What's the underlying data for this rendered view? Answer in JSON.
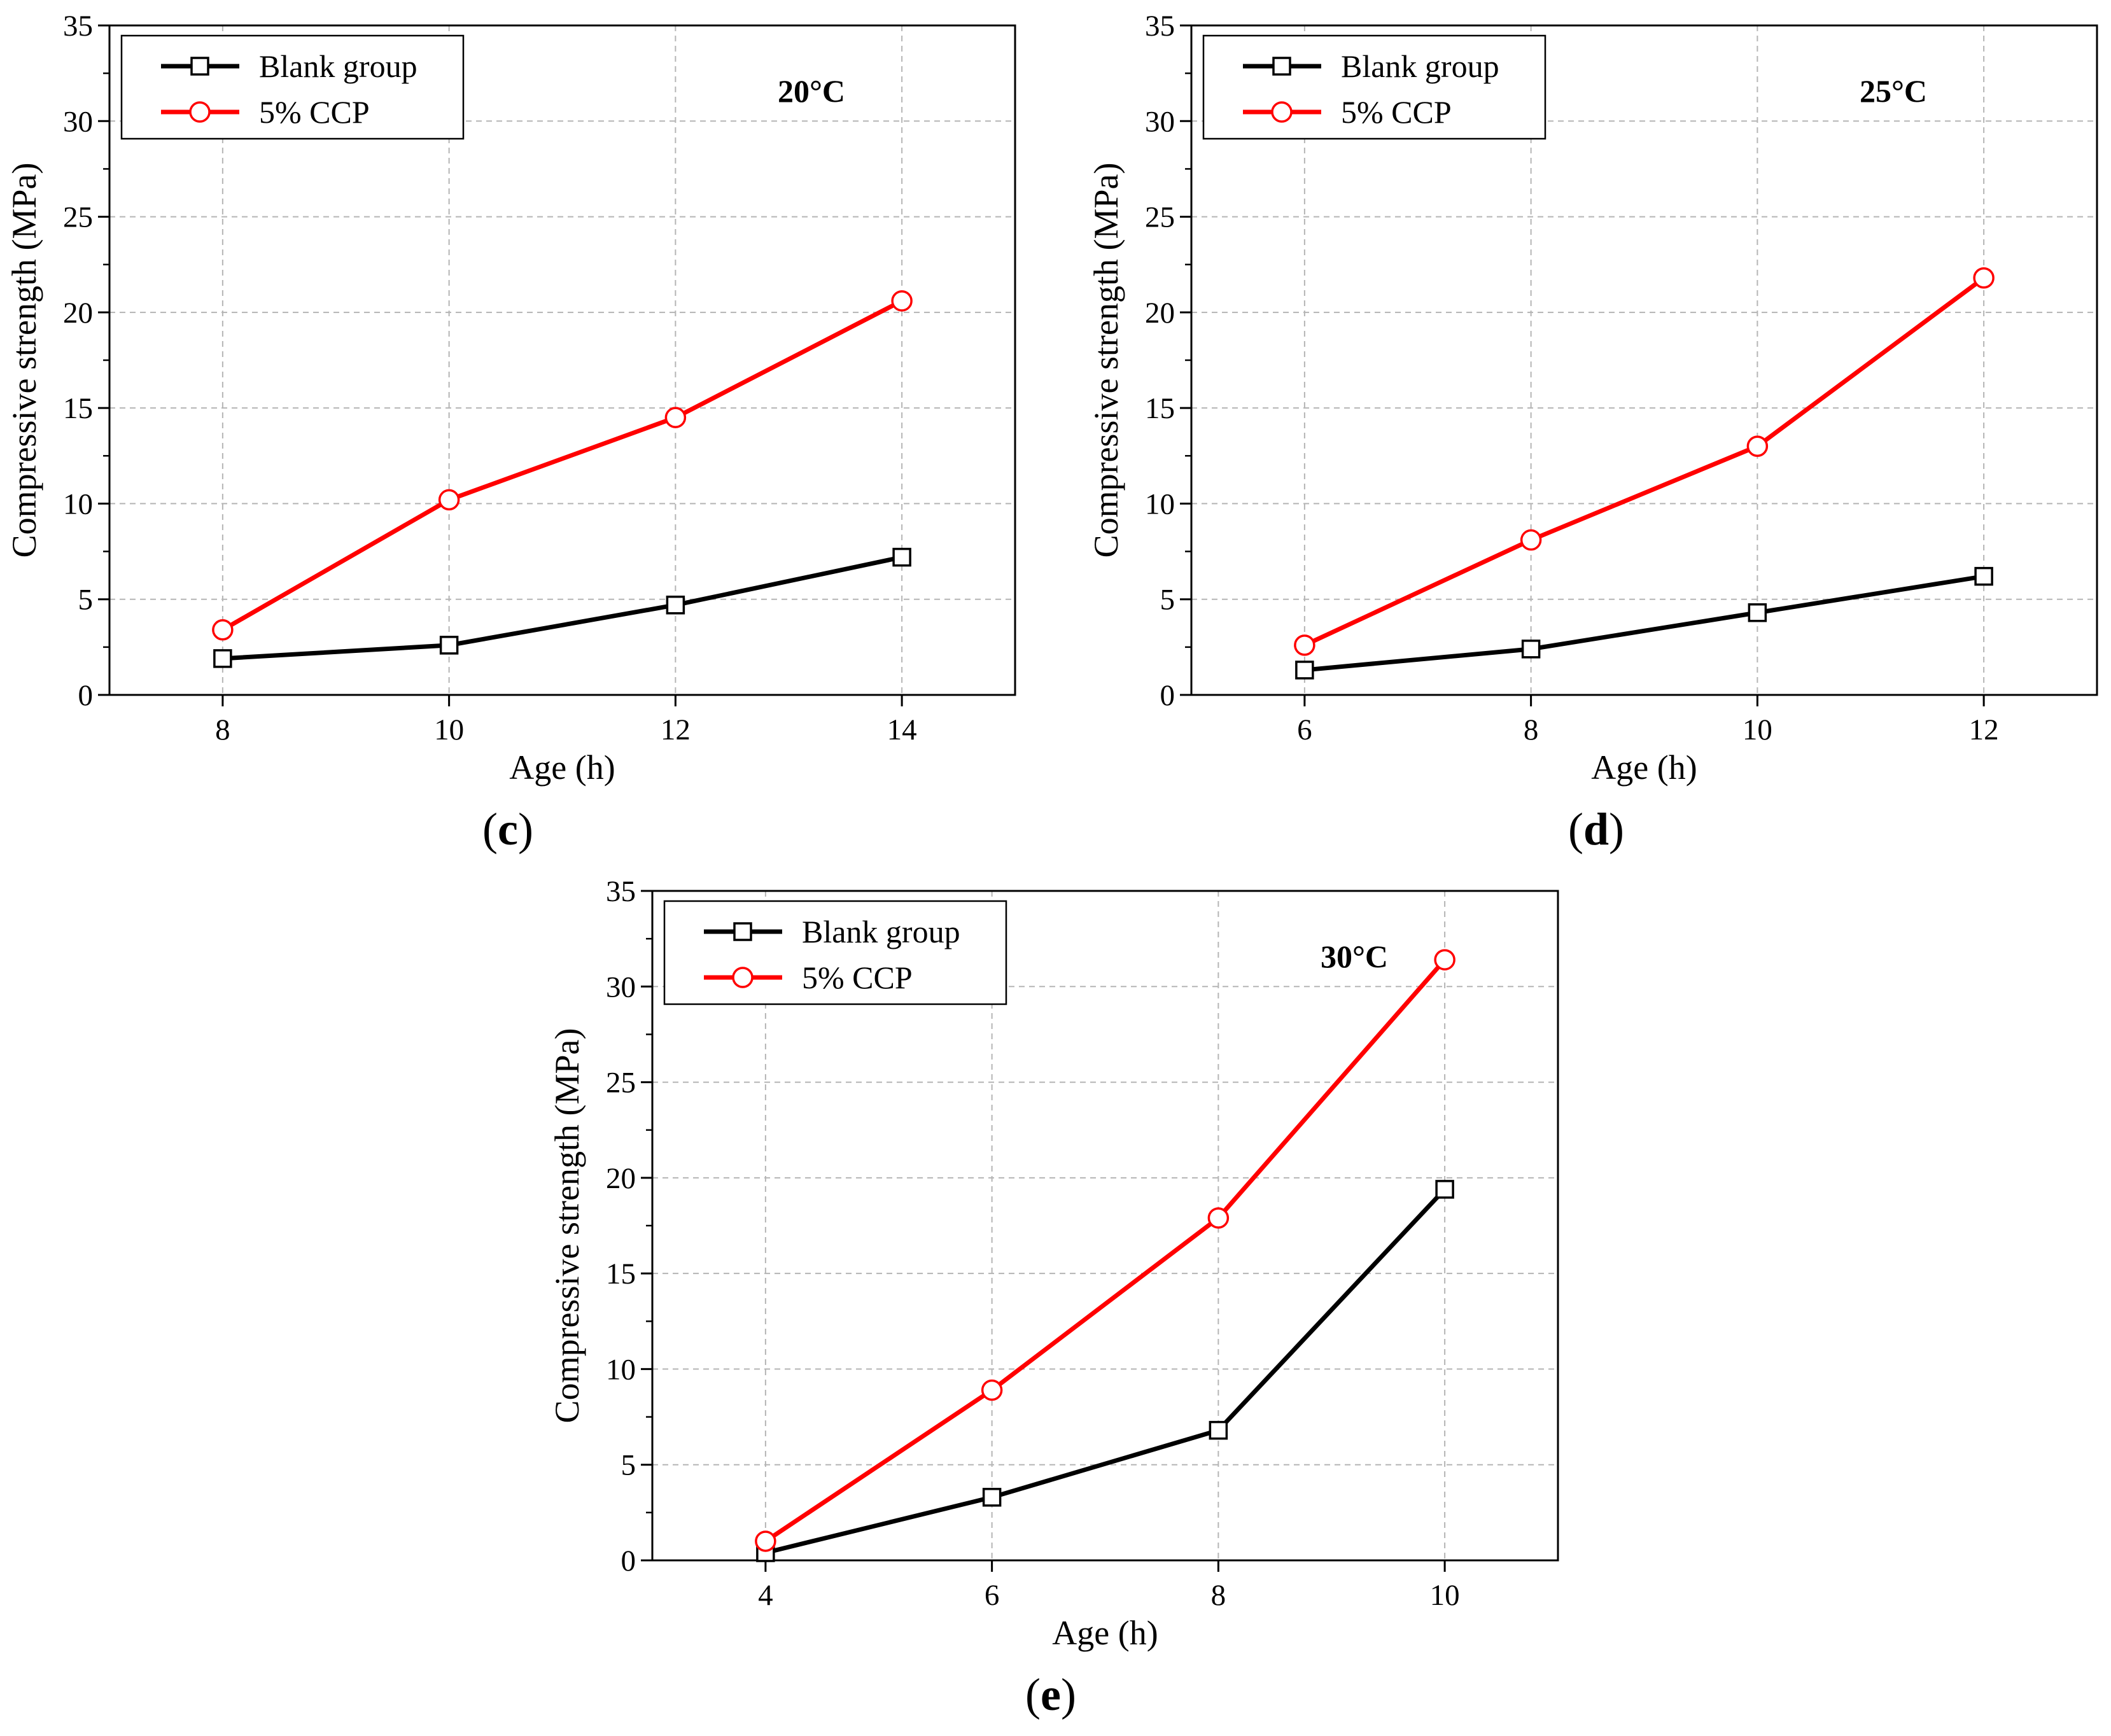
{
  "chart_data": [
    {
      "panel": "(c)",
      "panel_letter": "c",
      "type": "line",
      "annotation": "20°C",
      "xlabel": "Age (h)",
      "ylabel": "Compressive strength (MPa)",
      "xlim": [
        7,
        15
      ],
      "ylim": [
        0,
        35
      ],
      "xticks": [
        8,
        10,
        12,
        14
      ],
      "yticks": [
        0,
        5,
        10,
        15,
        20,
        25,
        30,
        35
      ],
      "grid": true,
      "legend_position": "top-left",
      "series": [
        {
          "name": "Blank group",
          "color": "#000000",
          "marker": "square",
          "x": [
            8,
            10,
            12,
            14
          ],
          "y": [
            1.9,
            2.6,
            4.7,
            7.2
          ]
        },
        {
          "name": "5% CCP",
          "color": "#ff0000",
          "marker": "circle",
          "x": [
            8,
            10,
            12,
            14
          ],
          "y": [
            3.4,
            10.2,
            14.5,
            20.6
          ]
        }
      ]
    },
    {
      "panel": "(d)",
      "panel_letter": "d",
      "type": "line",
      "annotation": "25°C",
      "xlabel": "Age (h)",
      "ylabel": "Compressive strength (MPa)",
      "xlim": [
        5,
        13
      ],
      "ylim": [
        0,
        35
      ],
      "xticks": [
        6,
        8,
        10,
        12
      ],
      "yticks": [
        0,
        5,
        10,
        15,
        20,
        25,
        30,
        35
      ],
      "grid": true,
      "legend_position": "top-left",
      "series": [
        {
          "name": "Blank group",
          "color": "#000000",
          "marker": "square",
          "x": [
            6,
            8,
            10,
            12
          ],
          "y": [
            1.3,
            2.4,
            4.3,
            6.2
          ]
        },
        {
          "name": "5% CCP",
          "color": "#ff0000",
          "marker": "circle",
          "x": [
            6,
            8,
            10,
            12
          ],
          "y": [
            2.6,
            8.1,
            13.0,
            21.8
          ]
        }
      ]
    },
    {
      "panel": "(e)",
      "panel_letter": "e",
      "type": "line",
      "annotation": "30°C",
      "xlabel": "Age (h)",
      "ylabel": "Compressive strength (MPa)",
      "xlim": [
        3,
        11
      ],
      "ylim": [
        0,
        35
      ],
      "xticks": [
        4,
        6,
        8,
        10
      ],
      "yticks": [
        0,
        5,
        10,
        15,
        20,
        25,
        30,
        35
      ],
      "grid": true,
      "legend_position": "top-left",
      "series": [
        {
          "name": "Blank group",
          "color": "#000000",
          "marker": "square",
          "x": [
            4,
            6,
            8,
            10
          ],
          "y": [
            0.4,
            3.3,
            6.8,
            19.4
          ]
        },
        {
          "name": "5% CCP",
          "color": "#ff0000",
          "marker": "circle",
          "x": [
            4,
            6,
            8,
            10
          ],
          "y": [
            1.0,
            8.9,
            17.9,
            31.4
          ]
        }
      ]
    }
  ]
}
